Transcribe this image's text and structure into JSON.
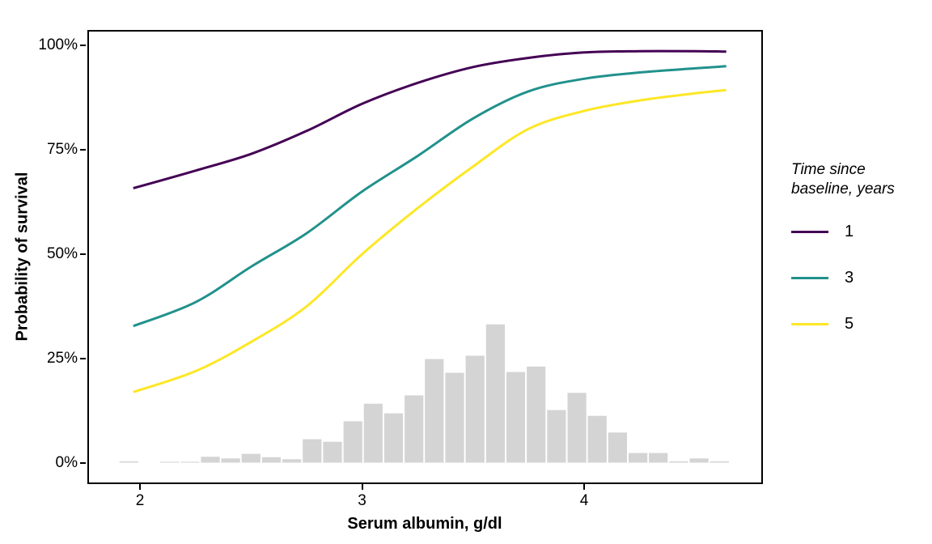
{
  "chart_data": {
    "type": "line",
    "title": "",
    "xlabel": "Serum albumin, g/dl",
    "ylabel": "Probability of survival",
    "x_axis": {
      "min": 1.76,
      "max": 4.8,
      "ticks": [
        2,
        3,
        4
      ],
      "tick_labels": [
        "2",
        "3",
        "4"
      ]
    },
    "y_axis": {
      "min": 0,
      "max": 100,
      "ticks": [
        0,
        25,
        50,
        75,
        100
      ],
      "tick_labels": [
        "0%",
        "25%",
        "50%",
        "75%",
        "100%"
      ]
    },
    "grid": "off",
    "legend": {
      "title": "Time since\nbaseline, years",
      "position": "right",
      "items": [
        {
          "label": "1",
          "color": "#440154"
        },
        {
          "label": "3",
          "color": "#21918c"
        },
        {
          "label": "5",
          "color": "#fde725"
        }
      ]
    },
    "x": [
      1.97,
      2.25,
      2.5,
      2.75,
      3.0,
      3.25,
      3.5,
      3.75,
      4.0,
      4.25,
      4.5,
      4.64
    ],
    "series": [
      {
        "name": "1",
        "color": "#440154",
        "values": [
          65.8,
          70,
          74,
          79.5,
          86,
          91,
          94.8,
          97,
          98.3,
          98.6,
          98.6,
          98.5
        ]
      },
      {
        "name": "3",
        "color": "#21918c",
        "values": [
          32.8,
          38.5,
          47,
          55,
          65,
          73.5,
          82.5,
          89,
          92,
          93.5,
          94.5,
          95
        ]
      },
      {
        "name": "5",
        "color": "#fde725",
        "values": [
          17,
          22,
          29,
          37.5,
          50,
          61,
          71,
          80,
          84.3,
          86.8,
          88.5,
          89.3
        ]
      }
    ],
    "histogram": {
      "color": "#d4d4d4",
      "bin_start_center": 1.95,
      "bin_width": 0.0917,
      "values_pct": [
        0.5,
        0,
        0.4,
        0.4,
        1.6,
        1.2,
        2.3,
        1.5,
        1.0,
        5.8,
        5.2,
        10.1,
        14.3,
        12.0,
        16.3,
        25.0,
        21.7,
        25.8,
        33.3,
        21.9,
        23.2,
        12.8,
        16.9,
        11.4,
        7.4,
        2.5,
        2.5,
        0.5,
        1.2,
        0.5
      ]
    }
  }
}
